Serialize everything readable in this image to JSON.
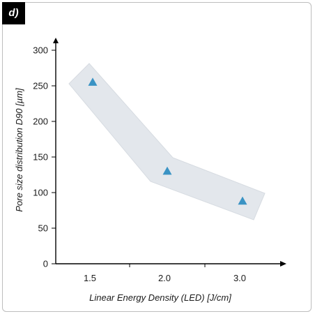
{
  "panel_label": "d)",
  "chart_data": {
    "type": "scatter",
    "title": "",
    "xlabel": "Linear Energy Density (LED) [J/cm]",
    "ylabel": "Pore size distribution D90 [µm]",
    "categories": [
      "1.5",
      "2.0",
      "3.0"
    ],
    "ylim": [
      0,
      300
    ],
    "yticks": [
      0,
      50,
      100,
      150,
      200,
      250,
      300
    ],
    "series": [
      {
        "marker": "triangle",
        "color": "#3a93c4",
        "values": [
          255,
          130,
          88
        ]
      }
    ],
    "trend_band": {
      "color": "#e3e7ec",
      "shape": "bent band following the points"
    },
    "grid": false,
    "legend": "none"
  }
}
